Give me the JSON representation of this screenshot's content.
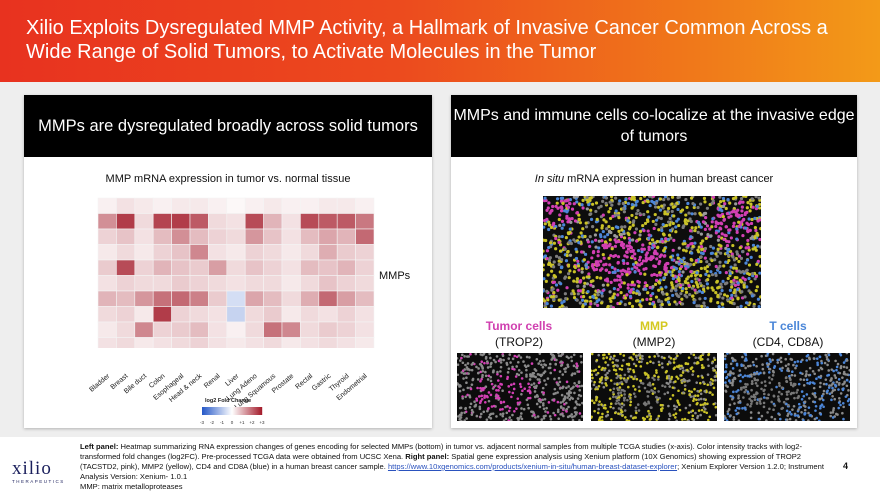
{
  "header": {
    "title": "Xilio Exploits Dysregulated MMP Activity, a Hallmark of Invasive Cancer Common Across a Wide Range of Solid Tumors, to Activate Molecules in the Tumor"
  },
  "left_panel": {
    "title": "MMPs are dysregulated broadly across solid tumors",
    "subtitle": "MMP mRNA expression in tumor vs. normal tissue",
    "mmps_label": "MMPs",
    "legend_title": "log2 Fold Change",
    "legend_ticks": [
      "-3",
      "-2",
      "-1",
      "0",
      "+1",
      "+2",
      "+3"
    ]
  },
  "right_panel": {
    "title": "MMPs and immune cells co-localize at the invasive edge of tumors",
    "subtitle_italic": "In situ",
    "subtitle_rest": " mRNA expression in human breast cancer",
    "cells": [
      {
        "label": "Tumor cells",
        "sub": "(TROP2)",
        "color": "#d040b0"
      },
      {
        "label": "MMP",
        "sub": "(MMP2)",
        "color": "#d4c820"
      },
      {
        "label": "T cells",
        "sub": "(CD4, CD8A)",
        "color": "#4a86d8"
      }
    ]
  },
  "chart_data": {
    "type": "heatmap",
    "title": "MMP mRNA expression in tumor vs. normal tissue",
    "xlabel": "",
    "ylabel": "MMPs",
    "categories": [
      "Bladder",
      "Breast",
      "Bile duct",
      "Colon",
      "Esophageal",
      "Head & neck",
      "Renal",
      "Liver",
      "Lung Adeno",
      "Lung Squamous",
      "Prostate",
      "Rectal",
      "Gastric",
      "Thyroid",
      "Endometrial"
    ],
    "colorbar": {
      "label": "log2 Fold Change",
      "range": [
        -3,
        3
      ]
    },
    "values": [
      [
        0.2,
        0.4,
        0.3,
        0.2,
        0.3,
        0.3,
        0.2,
        0.1,
        0.2,
        0.3,
        0.2,
        0.2,
        0.3,
        0.3,
        0.2
      ],
      [
        1.5,
        2.6,
        0.5,
        2.5,
        2.6,
        2.2,
        0.5,
        0.4,
        2.4,
        1.0,
        0.4,
        2.4,
        2.2,
        2.2,
        1.8
      ],
      [
        0.6,
        0.8,
        0.4,
        0.9,
        1.5,
        0.9,
        0.6,
        0.5,
        1.4,
        0.8,
        0.4,
        0.9,
        1.2,
        1.0,
        2.0
      ],
      [
        0.3,
        0.5,
        0.3,
        0.6,
        0.8,
        1.6,
        0.4,
        0.3,
        0.6,
        0.5,
        0.3,
        0.5,
        1.1,
        0.7,
        0.6
      ],
      [
        0.7,
        2.4,
        0.6,
        1.0,
        0.8,
        0.7,
        1.3,
        0.5,
        0.8,
        0.6,
        0.4,
        0.9,
        0.8,
        1.0,
        0.6
      ],
      [
        0.4,
        0.6,
        0.5,
        0.5,
        0.7,
        0.6,
        0.5,
        0.4,
        0.5,
        0.5,
        0.3,
        0.5,
        0.8,
        0.6,
        0.5
      ],
      [
        1.0,
        0.9,
        1.4,
        1.9,
        2.0,
        1.7,
        0.7,
        -0.6,
        1.2,
        0.9,
        0.5,
        1.1,
        2.0,
        1.3,
        0.9
      ],
      [
        0.5,
        0.6,
        0.3,
        2.6,
        0.6,
        0.5,
        0.4,
        -0.8,
        0.5,
        0.7,
        0.3,
        0.5,
        0.4,
        0.6,
        0.4
      ],
      [
        0.3,
        0.5,
        1.6,
        0.6,
        0.7,
        0.9,
        0.4,
        0.2,
        0.5,
        1.9,
        1.6,
        0.5,
        0.7,
        0.6,
        0.4
      ],
      [
        0.4,
        0.5,
        0.3,
        0.4,
        0.5,
        0.6,
        0.4,
        0.3,
        0.4,
        0.5,
        0.3,
        0.4,
        0.5,
        0.4,
        0.3
      ],
      [
        0.2,
        0.3,
        0.2,
        0.3,
        0.3,
        0.4,
        0.3,
        0.2,
        0.3,
        0.3,
        0.2,
        0.3,
        0.3,
        0.3,
        0.2
      ]
    ]
  },
  "caption": {
    "left_label": "Left panel:",
    "left_text": " Heatmap summarizing RNA expression changes of genes encoding for selected MMPs (bottom) in tumor vs. adjacent normal samples from multiple TCGA studies (x-axis). Color intensity tracks with log2-transformed fold changes (log2FC). Pre-processed TCGA data were obtained from UCSC Xena. ",
    "right_label": "Right panel:",
    "right_text": " Spatial gene expression analysis using Xenium platform (10X Genomics) showing expression of TROP2 (TACSTD2, pink), MMP2 (yellow), CD4 and CD8A (blue) in a human breast cancer sample. ",
    "link": "https://www.10xgenomics.com/products/xenium-in-situ/human-breast-dataset-explorer",
    "after_link": "; Xenium Explorer Version 1.2.0; Instrument Analysis Version: Xenium- 1.0.1",
    "footnote": "MMP: matrix metalloproteases"
  },
  "page_number": "4",
  "logo": {
    "name": "xilio",
    "tagline": "THERAPEUTICS"
  }
}
